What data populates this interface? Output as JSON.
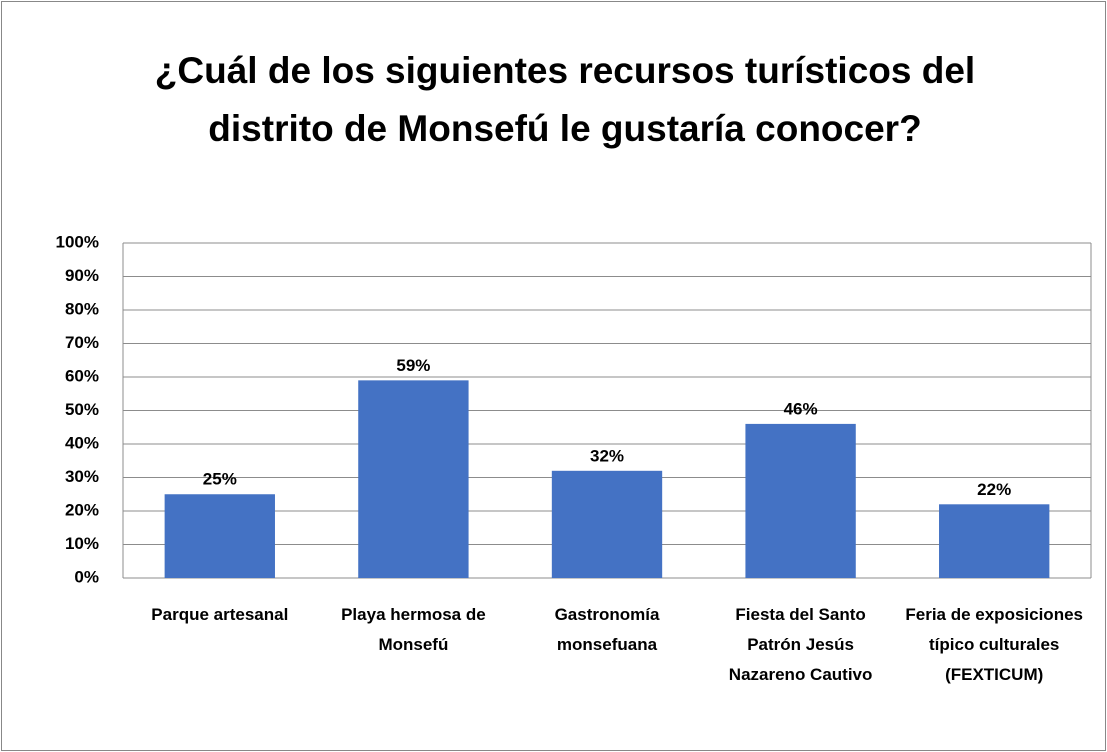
{
  "chart_data": {
    "type": "bar",
    "title": "¿Cuál de los siguientes recursos turísticos del distrito de Monsefú le gustaría conocer?",
    "categories": [
      "Parque artesanal",
      "Playa hermosa de Monsefú",
      "Gastronomía monsefuana",
      "Fiesta del Santo Patrón Jesús Nazareno Cautivo",
      "Feria de exposiciones típico culturales (FEXTICUM)"
    ],
    "values": [
      25,
      59,
      32,
      46,
      22
    ],
    "value_labels": [
      "25%",
      "59%",
      "32%",
      "46%",
      "22%"
    ],
    "color": "#4472c4",
    "ylim": [
      0,
      100
    ],
    "yticks": [
      {
        "value": 0,
        "label": "0%"
      },
      {
        "value": 10,
        "label": "10%"
      },
      {
        "value": 20,
        "label": "20%"
      },
      {
        "value": 30,
        "label": "30%"
      },
      {
        "value": 40,
        "label": "40%"
      },
      {
        "value": 50,
        "label": "50%"
      },
      {
        "value": 60,
        "label": "60%"
      },
      {
        "value": 70,
        "label": "70%"
      },
      {
        "value": 80,
        "label": "80%"
      },
      {
        "value": 90,
        "label": "90%"
      },
      {
        "value": 100,
        "label": "100%"
      }
    ],
    "grid": true
  }
}
